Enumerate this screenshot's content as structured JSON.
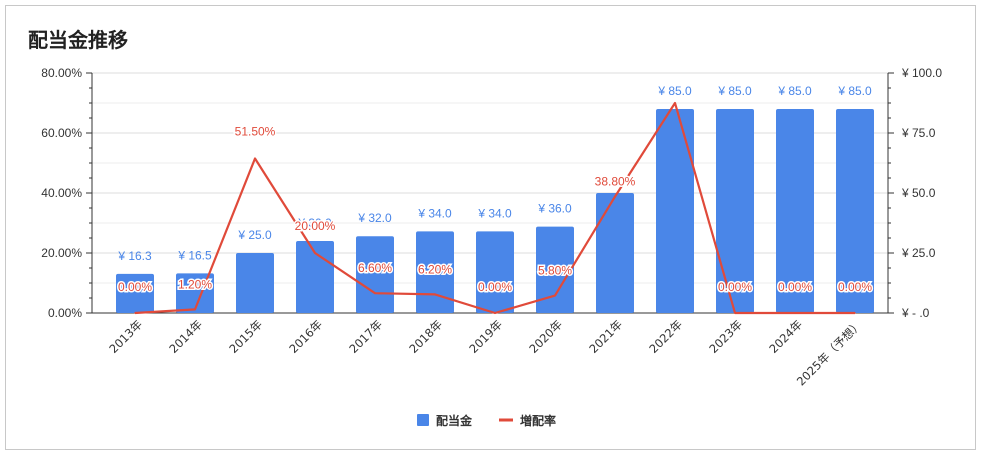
{
  "chart_data": {
    "type": "bar",
    "title": "配当金推移",
    "categories": [
      "2013年",
      "2014年",
      "2015年",
      "2016年",
      "2017年",
      "2018年",
      "2019年",
      "2020年",
      "2021年",
      "2022年",
      "2023年",
      "2024年",
      "2025年（予想）"
    ],
    "series": [
      {
        "name": "配当金",
        "type": "bar",
        "axis": "right",
        "color": "#4a86e8",
        "values": [
          16.3,
          16.5,
          25.0,
          30.0,
          32.0,
          34.0,
          34.0,
          36.0,
          50.0,
          85.0,
          85.0,
          85.0,
          85.0
        ],
        "labels": [
          "¥ 16.3",
          "¥ 16.5",
          "¥ 25.0",
          "¥ 30.0",
          "¥ 32.0",
          "¥ 34.0",
          "¥ 34.0",
          "¥ 36.0",
          "",
          "¥ 85.0",
          "¥ 85.0",
          "¥ 85.0",
          "¥ 85.0"
        ]
      },
      {
        "name": "増配率",
        "type": "line",
        "axis": "left",
        "color": "#e04a3a",
        "values": [
          0.0,
          1.2,
          51.5,
          20.0,
          6.6,
          6.2,
          0.0,
          5.8,
          38.8,
          70.0,
          0.0,
          0.0,
          0.0
        ],
        "labels": [
          "0.00%",
          "1.20%",
          "51.50%",
          "20.00%",
          "6.60%",
          "6.20%",
          "0.00%",
          "5.80%",
          "38.80%",
          "",
          "0.00%",
          "0.00%",
          "0.00%"
        ]
      }
    ],
    "left_axis": {
      "ylim": [
        0,
        80
      ],
      "ticks": [
        "0.00%",
        "20.00%",
        "40.00%",
        "60.00%",
        "80.00%"
      ]
    },
    "right_axis": {
      "ylim": [
        0,
        100
      ],
      "ticks": [
        "¥ - .0",
        "¥ 25.0",
        "¥ 50.0",
        "¥ 75.0",
        "¥ 100.0"
      ]
    },
    "legend": {
      "position": "bottom",
      "items": [
        "配当金",
        "増配率"
      ]
    },
    "grid": true
  }
}
